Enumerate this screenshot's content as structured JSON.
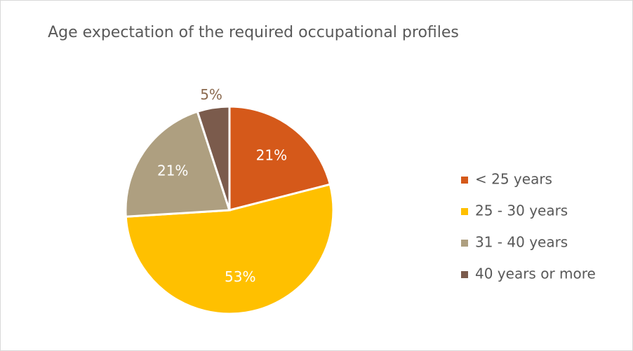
{
  "chart_data": {
    "type": "pie",
    "title": "Age expectation of the required occupational profiles",
    "categories": [
      "< 25 years",
      "25 - 30 years",
      "31 - 40 years",
      "40 years or more"
    ],
    "values": [
      21,
      53,
      21,
      5
    ],
    "value_labels": [
      "21%",
      "53%",
      "21%",
      "5%"
    ],
    "colors": [
      "#d5591a",
      "#ffc000",
      "#ae9f80",
      "#7b5b4c"
    ],
    "legend": "right"
  }
}
